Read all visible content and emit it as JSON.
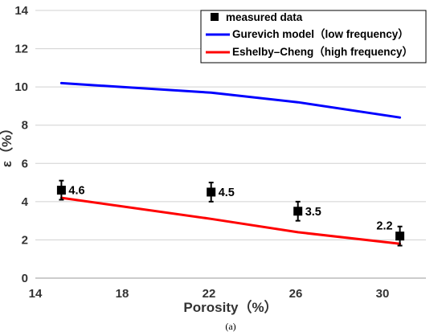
{
  "chart_data": {
    "type": "line",
    "xlabel": "Porosity（%）",
    "ylabel": "ε（%）",
    "caption": "(a)",
    "xlim": [
      14,
      32
    ],
    "ylim": [
      0,
      14
    ],
    "x_ticks": [
      "14",
      "18",
      "22",
      "26",
      "30"
    ],
    "y_ticks": [
      "0",
      "2",
      "4",
      "6",
      "8",
      "10",
      "12",
      "14"
    ],
    "grid": "horizontal",
    "legend_position": "top-right",
    "series": [
      {
        "name": "Gurevich model（low frequency）",
        "color": "#0000ff",
        "points": [
          {
            "x": 15.2,
            "y": 10.2
          },
          {
            "x": 22.1,
            "y": 9.7
          },
          {
            "x": 26.1,
            "y": 9.2
          },
          {
            "x": 30.8,
            "y": 8.4
          }
        ]
      },
      {
        "name": "Eshelby–Cheng（high frequency）",
        "color": "#ff0000",
        "points": [
          {
            "x": 15.2,
            "y": 4.2
          },
          {
            "x": 22.1,
            "y": 3.1
          },
          {
            "x": 26.1,
            "y": 2.4
          },
          {
            "x": 30.8,
            "y": 1.8
          }
        ]
      }
    ],
    "measured": {
      "name": "measured data",
      "color": "#000000",
      "points": [
        {
          "x": 15.2,
          "y": 4.6,
          "err": 0.5,
          "label": "4.6"
        },
        {
          "x": 22.1,
          "y": 4.5,
          "err": 0.5,
          "label": "4.5"
        },
        {
          "x": 26.1,
          "y": 3.5,
          "err": 0.5,
          "label": "3.5"
        },
        {
          "x": 30.8,
          "y": 2.2,
          "err": 0.5,
          "label": "2.2"
        }
      ]
    }
  }
}
